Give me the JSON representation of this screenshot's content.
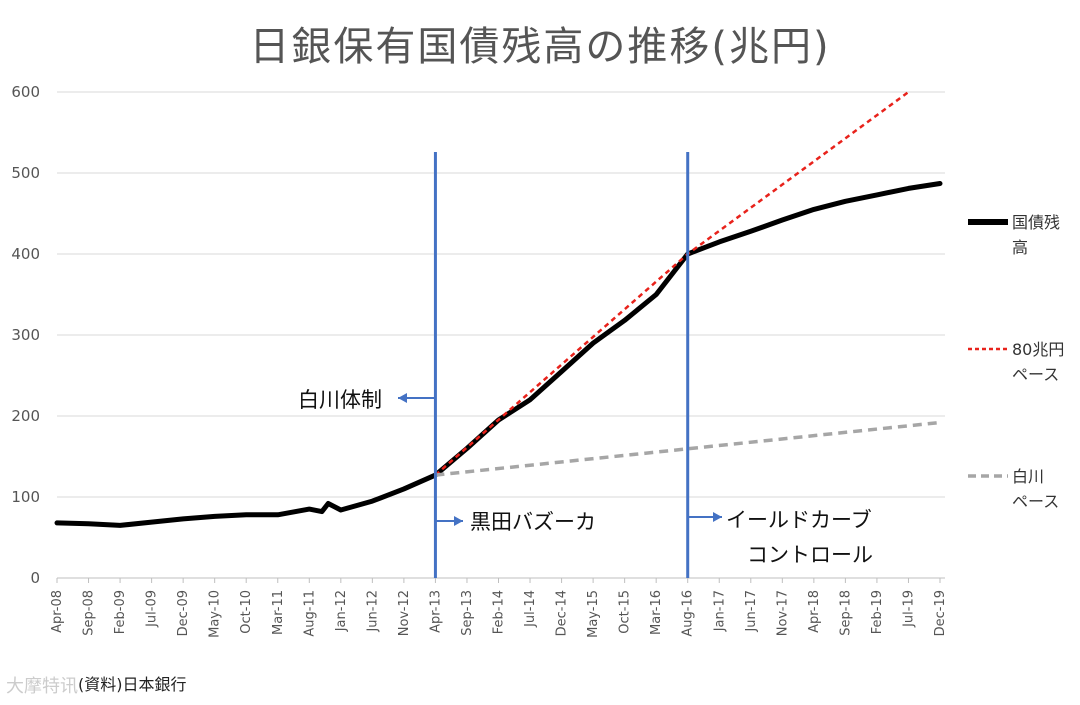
{
  "chart_data": {
    "type": "line",
    "title": "日銀保有国債残高の推移(兆円)",
    "source": "(資料)日本銀行",
    "watermark": "大摩特讯",
    "ylim": [
      0,
      600
    ],
    "yticks": [
      0,
      100,
      200,
      300,
      400,
      500,
      600
    ],
    "grid": "horizontal",
    "legend_position": "right",
    "x_tick_labels": [
      "Apr-08",
      "Sep-08",
      "Feb-09",
      "Jul-09",
      "Dec-09",
      "May-10",
      "Oct-10",
      "Mar-11",
      "Aug-11",
      "Jan-12",
      "Jun-12",
      "Nov-12",
      "Apr-13",
      "Sep-13",
      "Feb-14",
      "Jul-14",
      "Dec-14",
      "May-15",
      "Oct-15",
      "Mar-16",
      "Aug-16",
      "Jan-17",
      "Jun-17",
      "Nov-17",
      "Apr-18",
      "Sep-18",
      "Feb-19",
      "Jul-19",
      "Dec-19"
    ],
    "series": [
      {
        "name": "国債残高",
        "color": "#000000",
        "style": "solid-thick",
        "points": [
          [
            "Apr-08",
            68
          ],
          [
            "Sep-08",
            67
          ],
          [
            "Feb-09",
            65
          ],
          [
            "Jul-09",
            69
          ],
          [
            "Dec-09",
            73
          ],
          [
            "May-10",
            76
          ],
          [
            "Oct-10",
            78
          ],
          [
            "Mar-11",
            78
          ],
          [
            "Aug-11",
            85
          ],
          [
            "Oct-11",
            82
          ],
          [
            "Nov-11",
            92
          ],
          [
            "Jan-12",
            84
          ],
          [
            "Jun-12",
            95
          ],
          [
            "Nov-12",
            110
          ],
          [
            "Apr-13",
            127
          ],
          [
            "Sep-13",
            160
          ],
          [
            "Feb-14",
            195
          ],
          [
            "Jul-14",
            220
          ],
          [
            "Dec-14",
            255
          ],
          [
            "May-15",
            290
          ],
          [
            "Oct-15",
            318
          ],
          [
            "Mar-16",
            350
          ],
          [
            "Aug-16",
            400
          ],
          [
            "Jan-17",
            415
          ],
          [
            "Jun-17",
            428
          ],
          [
            "Nov-17",
            442
          ],
          [
            "Apr-18",
            455
          ],
          [
            "Sep-18",
            465
          ],
          [
            "Feb-19",
            473
          ],
          [
            "Jul-19",
            481
          ],
          [
            "Dec-19",
            487
          ]
        ]
      },
      {
        "name": "80兆円ペース",
        "color": "#e8221b",
        "style": "dotted",
        "points": [
          [
            "Apr-13",
            127
          ],
          [
            "Aug-16",
            400
          ],
          [
            "Jul-19",
            600
          ]
        ]
      },
      {
        "name": "白川ペース",
        "color": "#a6a6a6",
        "style": "dashed",
        "points": [
          [
            "Apr-13",
            127
          ],
          [
            "Dec-19",
            192
          ]
        ]
      }
    ],
    "vertical_markers": [
      {
        "x": "Apr-13",
        "color": "#4472c4"
      },
      {
        "x": "Aug-16",
        "color": "#4472c4"
      }
    ],
    "annotations": [
      {
        "text": "白川体制",
        "arrow": "left"
      },
      {
        "text": "黒田バズーカ",
        "arrow": "right"
      },
      {
        "text": "イールドカーブ",
        "arrow": "right"
      },
      {
        "text": "コントロール",
        "arrow": "none"
      }
    ],
    "legend": [
      {
        "line1": "国債残",
        "line2": "高"
      },
      {
        "line1": "80兆円",
        "line2": "ペース"
      },
      {
        "line1": "白川",
        "line2": "ペース"
      }
    ]
  }
}
